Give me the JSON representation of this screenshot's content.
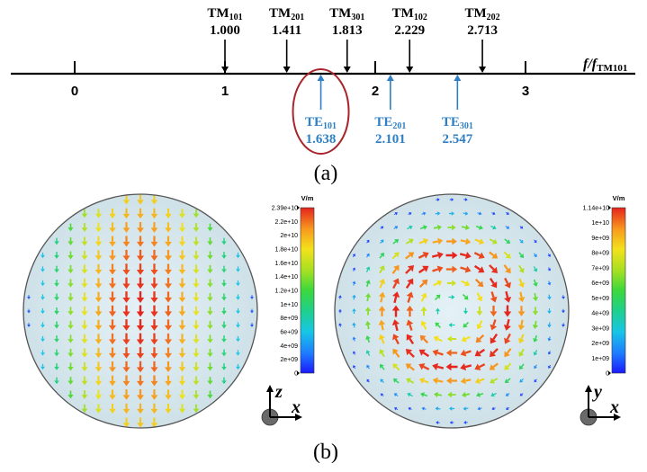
{
  "panel_a": {
    "caption": "(a)",
    "axis_label": "f/f",
    "axis_label_sub": "TM101",
    "ticks": [
      {
        "value": 0,
        "label": "0"
      },
      {
        "value": 1,
        "label": "1"
      },
      {
        "value": 2,
        "label": "2"
      },
      {
        "value": 3,
        "label": "3"
      }
    ],
    "tm_modes": [
      {
        "name": "TM",
        "sub": "101",
        "value": 1.0,
        "value_label": "1.000"
      },
      {
        "name": "TM",
        "sub": "201",
        "value": 1.411,
        "value_label": "1.411"
      },
      {
        "name": "TM",
        "sub": "301",
        "value": 1.813,
        "value_label": "1.813"
      },
      {
        "name": "TM",
        "sub": "102",
        "value": 2.229,
        "value_label": "2.229"
      },
      {
        "name": "TM",
        "sub": "202",
        "value": 2.713,
        "value_label": "2.713"
      }
    ],
    "te_modes": [
      {
        "name": "TE",
        "sub": "101",
        "value": 1.638,
        "value_label": "1.638",
        "highlighted": true
      },
      {
        "name": "TE",
        "sub": "201",
        "value": 2.101,
        "value_label": "2.101",
        "highlighted": false
      },
      {
        "name": "TE",
        "sub": "301",
        "value": 2.547,
        "value_label": "2.547",
        "highlighted": false
      }
    ],
    "colors": {
      "tm": "#000000",
      "te": "#2e7fc4",
      "highlight": "#a8262b"
    }
  },
  "panel_b": {
    "caption": "(b)",
    "left": {
      "field_pattern": "vertical",
      "colorbar": {
        "unit": "V/m",
        "labels": [
          "2.39e+10",
          "2.2e+10",
          "2e+10",
          "1.8e+10",
          "1.6e+10",
          "1.4e+10",
          "1.2e+10",
          "1e+10",
          "8e+09",
          "6e+09",
          "4e+09",
          "2e+09",
          "0"
        ]
      },
      "axes": {
        "vertical": "z",
        "horizontal": "x"
      }
    },
    "right": {
      "field_pattern": "circulating",
      "colorbar": {
        "unit": "V/m",
        "labels": [
          "1.14e+10",
          "1e+10",
          "9e+09",
          "8e+09",
          "7e+09",
          "6e+09",
          "5e+09",
          "4e+09",
          "3e+09",
          "2e+09",
          "1e+09",
          "0"
        ]
      },
      "axes": {
        "vertical": "y",
        "horizontal": "x"
      }
    }
  }
}
